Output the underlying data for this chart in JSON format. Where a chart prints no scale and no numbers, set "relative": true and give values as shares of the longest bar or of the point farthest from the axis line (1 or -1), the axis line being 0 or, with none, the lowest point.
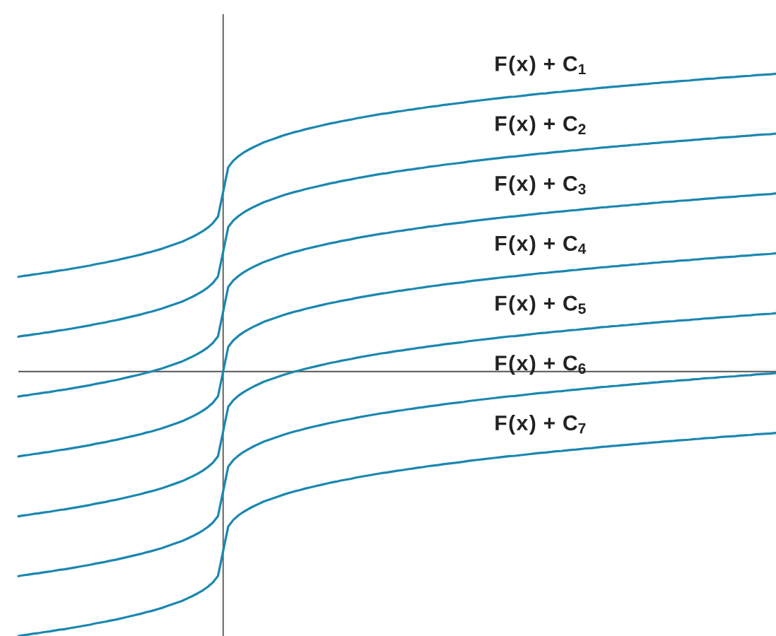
{
  "chart_data": {
    "type": "line",
    "relative": true,
    "categories": [
      null,
      null,
      null,
      null,
      null,
      null,
      null,
      null,
      null,
      null,
      null,
      null,
      null,
      null,
      null,
      null,
      null,
      null,
      null,
      null,
      null,
      null,
      null,
      null,
      null,
      null,
      null,
      null,
      null,
      null,
      null,
      null,
      null,
      null,
      null,
      null,
      null,
      null,
      null,
      null,
      null,
      null,
      null,
      null,
      null,
      null,
      null,
      null,
      null,
      null,
      null,
      null,
      null,
      null,
      null,
      null,
      null,
      null,
      null,
      null,
      null,
      null,
      null,
      null,
      null,
      null,
      null,
      null,
      null,
      null,
      null,
      null,
      null,
      null,
      null,
      null,
      null,
      null,
      null,
      null,
      null,
      null,
      null,
      null,
      null,
      null,
      null,
      null,
      null,
      null,
      null,
      null,
      null,
      null,
      null,
      null,
      null,
      null,
      null,
      null,
      null,
      null,
      null,
      null,
      null,
      null,
      null,
      null,
      null,
      null,
      null,
      null,
      null,
      null,
      null,
      null,
      null,
      null,
      null,
      null,
      null,
      null,
      null,
      null,
      null,
      null,
      null,
      null,
      null,
      null,
      null,
      null,
      null,
      null,
      null,
      null,
      null,
      null,
      null,
      null,
      null,
      null,
      null,
      null,
      null,
      null,
      null,
      null,
      null
    ],
    "series": [
      {
        "name": "F(x) + C$_{1}$",
        "color": "#1b87b0",
        "values": [
          0.318,
          0.321,
          0.323,
          0.326,
          0.328,
          0.331,
          0.333,
          0.336,
          0.339,
          0.341,
          0.344,
          0.347,
          0.35,
          0.353,
          0.356,
          0.36,
          0.363,
          0.366,
          0.37,
          0.373,
          0.377,
          0.381,
          0.385,
          0.389,
          0.393,
          0.398,
          0.402,
          0.407,
          0.412,
          0.418,
          0.424,
          0.43,
          0.436,
          0.444,
          0.452,
          0.461,
          0.471,
          0.483,
          0.498,
          0.52,
          0.603,
          0.686,
          0.708,
          0.723,
          0.735,
          0.745,
          0.754,
          0.762,
          0.77,
          0.776,
          0.782,
          0.788,
          0.794,
          0.799,
          0.804,
          0.808,
          0.813,
          0.817,
          0.821,
          0.825,
          0.829,
          0.833,
          0.836,
          0.84,
          0.843,
          0.846,
          0.85,
          0.853,
          0.856,
          0.859,
          0.862,
          0.865,
          0.867,
          0.87,
          0.873,
          0.875,
          0.878,
          0.88,
          0.883,
          0.885,
          0.888,
          0.89,
          0.892,
          0.895,
          0.897,
          0.899,
          0.901,
          0.903,
          0.906,
          0.908,
          0.91,
          0.912,
          0.914,
          0.916,
          0.918,
          0.92,
          0.922,
          0.923,
          0.925,
          0.927,
          0.929,
          0.931,
          0.933,
          0.934,
          0.936,
          0.938,
          0.939,
          0.941,
          0.943,
          0.944,
          0.946,
          0.948,
          0.949,
          0.951,
          0.953,
          0.954,
          0.956,
          0.957,
          0.959,
          0.96,
          0.962,
          0.963,
          0.965,
          0.966,
          0.968,
          0.969,
          0.971,
          0.972,
          0.973,
          0.975,
          0.976,
          0.977,
          0.979,
          0.98,
          0.982,
          0.983,
          0.984,
          0.986,
          0.987,
          0.988,
          0.989,
          0.991,
          0.992,
          0.993,
          0.995,
          0.996,
          0.997,
          0.998,
          1.0
        ]
      },
      {
        "name": "F(x) + C$_{2}$",
        "color": "#1b87b0",
        "values": [
          0.117,
          0.12,
          0.122,
          0.125,
          0.127,
          0.13,
          0.132,
          0.135,
          0.138,
          0.14,
          0.143,
          0.146,
          0.149,
          0.152,
          0.155,
          0.159,
          0.162,
          0.165,
          0.169,
          0.172,
          0.176,
          0.18,
          0.184,
          0.188,
          0.192,
          0.197,
          0.201,
          0.206,
          0.211,
          0.217,
          0.223,
          0.229,
          0.235,
          0.243,
          0.251,
          0.26,
          0.27,
          0.282,
          0.297,
          0.319,
          0.402,
          0.485,
          0.507,
          0.522,
          0.534,
          0.544,
          0.553,
          0.561,
          0.569,
          0.575,
          0.581,
          0.587,
          0.593,
          0.598,
          0.603,
          0.607,
          0.612,
          0.616,
          0.62,
          0.624,
          0.628,
          0.632,
          0.635,
          0.639,
          0.642,
          0.645,
          0.649,
          0.652,
          0.655,
          0.658,
          0.661,
          0.664,
          0.666,
          0.669,
          0.672,
          0.674,
          0.677,
          0.679,
          0.682,
          0.684,
          0.687,
          0.689,
          0.691,
          0.694,
          0.696,
          0.698,
          0.7,
          0.702,
          0.705,
          0.707,
          0.709,
          0.711,
          0.713,
          0.715,
          0.717,
          0.719,
          0.721,
          0.722,
          0.724,
          0.726,
          0.728,
          0.73,
          0.732,
          0.733,
          0.735,
          0.737,
          0.738,
          0.74,
          0.742,
          0.743,
          0.745,
          0.747,
          0.748,
          0.75,
          0.752,
          0.753,
          0.755,
          0.756,
          0.758,
          0.759,
          0.761,
          0.762,
          0.764,
          0.765,
          0.767,
          0.768,
          0.77,
          0.771,
          0.772,
          0.774,
          0.775,
          0.776,
          0.778,
          0.779,
          0.781,
          0.782,
          0.783,
          0.785,
          0.786,
          0.787,
          0.788,
          0.79,
          0.791,
          0.792,
          0.794,
          0.795,
          0.796,
          0.797,
          0.799
        ]
      },
      {
        "name": "F(x) + C$_{3}$",
        "color": "#1b87b0",
        "values": [
          -0.084,
          -0.081,
          -0.079,
          -0.076,
          -0.074,
          -0.071,
          -0.069,
          -0.066,
          -0.063,
          -0.061,
          -0.058,
          -0.055,
          -0.052,
          -0.049,
          -0.046,
          -0.042,
          -0.039,
          -0.036,
          -0.032,
          -0.029,
          -0.025,
          -0.021,
          -0.017,
          -0.013,
          -0.009,
          -0.004,
          0.0,
          0.005,
          0.01,
          0.016,
          0.022,
          0.028,
          0.034,
          0.042,
          0.05,
          0.059,
          0.069,
          0.081,
          0.096,
          0.118,
          0.201,
          0.284,
          0.306,
          0.321,
          0.333,
          0.343,
          0.352,
          0.36,
          0.368,
          0.374,
          0.38,
          0.386,
          0.392,
          0.397,
          0.402,
          0.406,
          0.411,
          0.415,
          0.419,
          0.423,
          0.427,
          0.431,
          0.434,
          0.438,
          0.441,
          0.444,
          0.448,
          0.451,
          0.454,
          0.457,
          0.46,
          0.463,
          0.465,
          0.468,
          0.471,
          0.473,
          0.476,
          0.478,
          0.481,
          0.483,
          0.486,
          0.488,
          0.49,
          0.493,
          0.495,
          0.497,
          0.499,
          0.501,
          0.504,
          0.506,
          0.508,
          0.51,
          0.512,
          0.514,
          0.516,
          0.518,
          0.52,
          0.521,
          0.523,
          0.525,
          0.527,
          0.529,
          0.531,
          0.532,
          0.534,
          0.536,
          0.537,
          0.539,
          0.541,
          0.542,
          0.544,
          0.546,
          0.547,
          0.549,
          0.551,
          0.552,
          0.554,
          0.555,
          0.557,
          0.558,
          0.56,
          0.561,
          0.563,
          0.564,
          0.566,
          0.567,
          0.569,
          0.57,
          0.571,
          0.573,
          0.574,
          0.575,
          0.577,
          0.578,
          0.58,
          0.581,
          0.582,
          0.584,
          0.585,
          0.586,
          0.587,
          0.589,
          0.59,
          0.591,
          0.593,
          0.594,
          0.595,
          0.596,
          0.598
        ]
      },
      {
        "name": "F(x) + C$_{4}$",
        "color": "#1b87b0",
        "values": [
          -0.285,
          -0.282,
          -0.28,
          -0.277,
          -0.275,
          -0.272,
          -0.27,
          -0.267,
          -0.264,
          -0.262,
          -0.259,
          -0.256,
          -0.253,
          -0.25,
          -0.247,
          -0.243,
          -0.24,
          -0.237,
          -0.233,
          -0.23,
          -0.226,
          -0.222,
          -0.218,
          -0.214,
          -0.21,
          -0.205,
          -0.201,
          -0.196,
          -0.191,
          -0.185,
          -0.179,
          -0.173,
          -0.167,
          -0.159,
          -0.151,
          -0.142,
          -0.132,
          -0.12,
          -0.105,
          -0.083,
          0.0,
          0.083,
          0.105,
          0.12,
          0.132,
          0.142,
          0.151,
          0.159,
          0.167,
          0.173,
          0.179,
          0.185,
          0.191,
          0.196,
          0.201,
          0.205,
          0.21,
          0.214,
          0.218,
          0.222,
          0.226,
          0.23,
          0.233,
          0.237,
          0.24,
          0.243,
          0.247,
          0.25,
          0.253,
          0.256,
          0.259,
          0.262,
          0.264,
          0.267,
          0.27,
          0.272,
          0.275,
          0.277,
          0.28,
          0.282,
          0.285,
          0.287,
          0.289,
          0.292,
          0.294,
          0.296,
          0.298,
          0.3,
          0.303,
          0.305,
          0.307,
          0.309,
          0.311,
          0.313,
          0.315,
          0.317,
          0.319,
          0.32,
          0.322,
          0.324,
          0.326,
          0.328,
          0.33,
          0.331,
          0.333,
          0.335,
          0.336,
          0.338,
          0.34,
          0.341,
          0.343,
          0.345,
          0.346,
          0.348,
          0.35,
          0.351,
          0.353,
          0.354,
          0.356,
          0.357,
          0.359,
          0.36,
          0.362,
          0.363,
          0.365,
          0.366,
          0.368,
          0.369,
          0.37,
          0.372,
          0.373,
          0.374,
          0.376,
          0.377,
          0.379,
          0.38,
          0.381,
          0.383,
          0.384,
          0.385,
          0.386,
          0.388,
          0.389,
          0.39,
          0.392,
          0.393,
          0.394,
          0.395,
          0.397
        ]
      },
      {
        "name": "F(x) + C$_{5}$",
        "color": "#1b87b0",
        "values": [
          -0.486,
          -0.483,
          -0.481,
          -0.478,
          -0.476,
          -0.473,
          -0.471,
          -0.468,
          -0.465,
          -0.463,
          -0.46,
          -0.457,
          -0.454,
          -0.451,
          -0.448,
          -0.444,
          -0.441,
          -0.438,
          -0.434,
          -0.431,
          -0.427,
          -0.423,
          -0.419,
          -0.415,
          -0.411,
          -0.406,
          -0.402,
          -0.397,
          -0.392,
          -0.386,
          -0.38,
          -0.374,
          -0.368,
          -0.36,
          -0.352,
          -0.343,
          -0.333,
          -0.321,
          -0.306,
          -0.284,
          -0.201,
          -0.118,
          -0.096,
          -0.081,
          -0.069,
          -0.059,
          -0.05,
          -0.042,
          -0.034,
          -0.028,
          -0.022,
          -0.016,
          -0.01,
          -0.005,
          0.0,
          0.004,
          0.009,
          0.013,
          0.017,
          0.021,
          0.025,
          0.029,
          0.032,
          0.036,
          0.039,
          0.042,
          0.046,
          0.049,
          0.052,
          0.055,
          0.058,
          0.061,
          0.063,
          0.066,
          0.069,
          0.071,
          0.074,
          0.076,
          0.079,
          0.081,
          0.084,
          0.086,
          0.088,
          0.091,
          0.093,
          0.095,
          0.097,
          0.099,
          0.102,
          0.104,
          0.106,
          0.108,
          0.11,
          0.112,
          0.114,
          0.116,
          0.118,
          0.119,
          0.121,
          0.123,
          0.125,
          0.127,
          0.129,
          0.13,
          0.132,
          0.134,
          0.135,
          0.137,
          0.139,
          0.14,
          0.142,
          0.144,
          0.145,
          0.147,
          0.149,
          0.15,
          0.152,
          0.153,
          0.155,
          0.156,
          0.158,
          0.159,
          0.161,
          0.162,
          0.164,
          0.165,
          0.167,
          0.168,
          0.169,
          0.171,
          0.172,
          0.173,
          0.175,
          0.176,
          0.178,
          0.179,
          0.18,
          0.182,
          0.183,
          0.184,
          0.185,
          0.187,
          0.188,
          0.189,
          0.191,
          0.192,
          0.193,
          0.194,
          0.196
        ]
      },
      {
        "name": "F(x) + C$_{6}$",
        "color": "#1b87b0",
        "values": [
          -0.687,
          -0.684,
          -0.682,
          -0.679,
          -0.677,
          -0.674,
          -0.672,
          -0.669,
          -0.666,
          -0.664,
          -0.661,
          -0.658,
          -0.655,
          -0.652,
          -0.649,
          -0.645,
          -0.642,
          -0.639,
          -0.635,
          -0.632,
          -0.628,
          -0.624,
          -0.62,
          -0.616,
          -0.612,
          -0.607,
          -0.603,
          -0.598,
          -0.593,
          -0.587,
          -0.581,
          -0.575,
          -0.569,
          -0.561,
          -0.553,
          -0.544,
          -0.534,
          -0.522,
          -0.507,
          -0.485,
          -0.402,
          -0.319,
          -0.297,
          -0.282,
          -0.27,
          -0.26,
          -0.251,
          -0.243,
          -0.235,
          -0.229,
          -0.223,
          -0.217,
          -0.211,
          -0.206,
          -0.201,
          -0.197,
          -0.192,
          -0.188,
          -0.184,
          -0.18,
          -0.176,
          -0.172,
          -0.169,
          -0.165,
          -0.162,
          -0.159,
          -0.155,
          -0.152,
          -0.149,
          -0.146,
          -0.143,
          -0.14,
          -0.138,
          -0.135,
          -0.132,
          -0.13,
          -0.127,
          -0.125,
          -0.122,
          -0.12,
          -0.117,
          -0.115,
          -0.113,
          -0.11,
          -0.108,
          -0.106,
          -0.104,
          -0.102,
          -0.099,
          -0.097,
          -0.095,
          -0.093,
          -0.091,
          -0.089,
          -0.087,
          -0.085,
          -0.083,
          -0.082,
          -0.08,
          -0.078,
          -0.076,
          -0.074,
          -0.072,
          -0.071,
          -0.069,
          -0.067,
          -0.066,
          -0.064,
          -0.062,
          -0.061,
          -0.059,
          -0.057,
          -0.056,
          -0.054,
          -0.052,
          -0.051,
          -0.049,
          -0.048,
          -0.046,
          -0.045,
          -0.043,
          -0.042,
          -0.04,
          -0.039,
          -0.037,
          -0.036,
          -0.034,
          -0.033,
          -0.032,
          -0.03,
          -0.029,
          -0.028,
          -0.026,
          -0.025,
          -0.023,
          -0.022,
          -0.021,
          -0.019,
          -0.018,
          -0.017,
          -0.016,
          -0.014,
          -0.013,
          -0.012,
          -0.01,
          -0.009,
          -0.008,
          -0.007,
          -0.005
        ]
      },
      {
        "name": "F(x) + C$_{7}$",
        "color": "#1b87b0",
        "values": [
          -0.888,
          -0.885,
          -0.883,
          -0.88,
          -0.878,
          -0.875,
          -0.873,
          -0.87,
          -0.867,
          -0.865,
          -0.862,
          -0.859,
          -0.856,
          -0.853,
          -0.85,
          -0.846,
          -0.843,
          -0.84,
          -0.836,
          -0.833,
          -0.829,
          -0.825,
          -0.821,
          -0.817,
          -0.813,
          -0.808,
          -0.804,
          -0.799,
          -0.794,
          -0.788,
          -0.782,
          -0.776,
          -0.77,
          -0.762,
          -0.754,
          -0.745,
          -0.735,
          -0.723,
          -0.708,
          -0.686,
          -0.603,
          -0.52,
          -0.498,
          -0.483,
          -0.471,
          -0.461,
          -0.452,
          -0.444,
          -0.436,
          -0.43,
          -0.424,
          -0.418,
          -0.412,
          -0.407,
          -0.402,
          -0.398,
          -0.393,
          -0.389,
          -0.385,
          -0.381,
          -0.377,
          -0.373,
          -0.37,
          -0.366,
          -0.363,
          -0.36,
          -0.356,
          -0.353,
          -0.35,
          -0.347,
          -0.344,
          -0.341,
          -0.339,
          -0.336,
          -0.333,
          -0.331,
          -0.328,
          -0.326,
          -0.323,
          -0.321,
          -0.318,
          -0.316,
          -0.314,
          -0.311,
          -0.309,
          -0.307,
          -0.305,
          -0.303,
          -0.3,
          -0.298,
          -0.296,
          -0.294,
          -0.292,
          -0.29,
          -0.288,
          -0.286,
          -0.284,
          -0.283,
          -0.281,
          -0.279,
          -0.277,
          -0.275,
          -0.273,
          -0.272,
          -0.27,
          -0.268,
          -0.267,
          -0.265,
          -0.263,
          -0.262,
          -0.26,
          -0.258,
          -0.257,
          -0.255,
          -0.253,
          -0.252,
          -0.25,
          -0.249,
          -0.247,
          -0.246,
          -0.244,
          -0.243,
          -0.241,
          -0.24,
          -0.238,
          -0.237,
          -0.235,
          -0.234,
          -0.233,
          -0.231,
          -0.23,
          -0.229,
          -0.227,
          -0.226,
          -0.224,
          -0.223,
          -0.222,
          -0.22,
          -0.219,
          -0.218,
          -0.217,
          -0.215,
          -0.214,
          -0.213,
          -0.211,
          -0.21,
          -0.209,
          -0.208,
          -0.206
        ]
      }
    ]
  }
}
